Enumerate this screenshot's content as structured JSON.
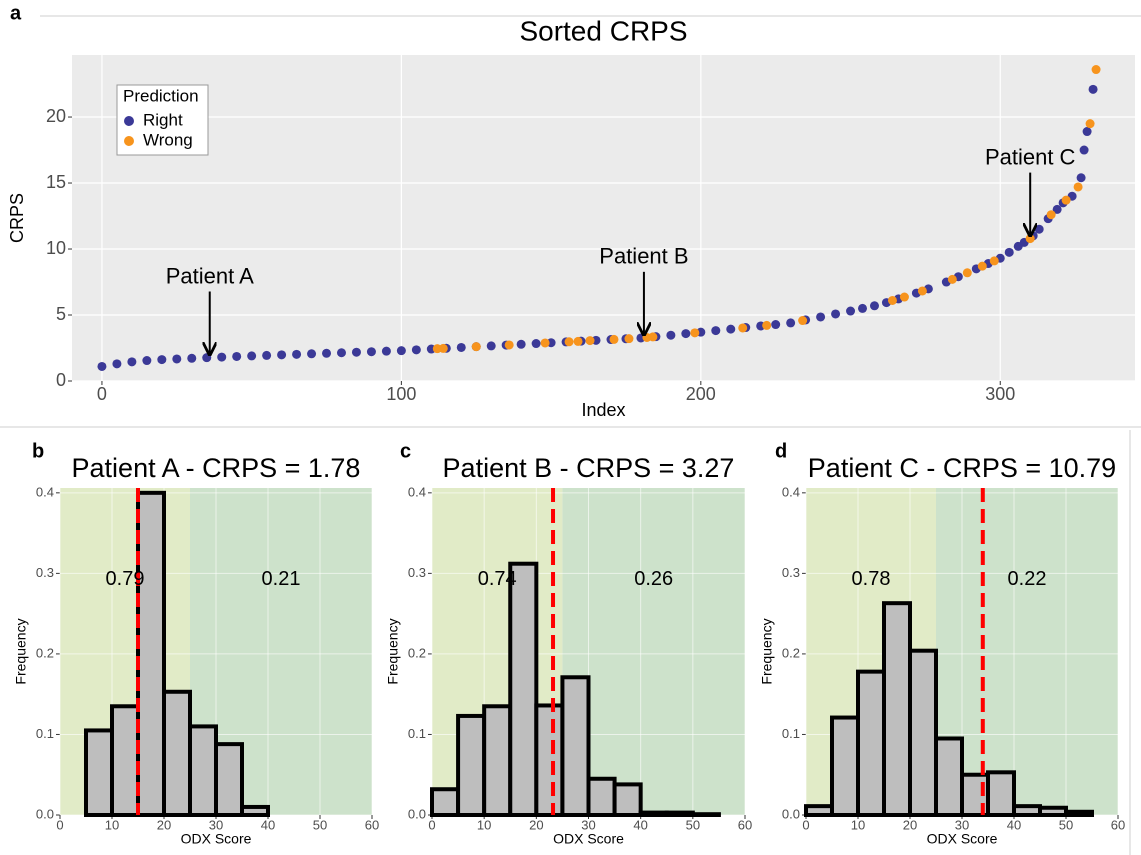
{
  "chart_data": [
    {
      "type": "scatter",
      "panel_label": "a",
      "title": "Sorted CRPS",
      "x_label": "Index",
      "y_label": "CRPS",
      "xlim": [
        -10,
        345
      ],
      "ylim": [
        0,
        24.7
      ],
      "xticks": [
        0,
        100,
        200,
        300
      ],
      "yticks": [
        0,
        5,
        10,
        15,
        20
      ],
      "grid": true,
      "legend": {
        "title": "Prediction",
        "position": "top-left"
      },
      "series": [
        {
          "name": "Right",
          "color": "#3b3997",
          "x": [
            0,
            5,
            10,
            15,
            20,
            25,
            30,
            35,
            40,
            45,
            50,
            55,
            60,
            65,
            70,
            75,
            80,
            85,
            90,
            95,
            100,
            105,
            110,
            115,
            120,
            125,
            130,
            135,
            140,
            145,
            150,
            155,
            160,
            165,
            170,
            175,
            180,
            185,
            190,
            195,
            200,
            205,
            210,
            215,
            220,
            225,
            230,
            235,
            240,
            245,
            250,
            254,
            258,
            262,
            266,
            272,
            276,
            282,
            286,
            292,
            296,
            300,
            303,
            306,
            308,
            311,
            313,
            316,
            319,
            321,
            324,
            327,
            328,
            329,
            331
          ],
          "values": [
            1.1,
            1.3,
            1.45,
            1.55,
            1.62,
            1.67,
            1.72,
            1.77,
            1.81,
            1.86,
            1.9,
            1.94,
            1.98,
            2.02,
            2.06,
            2.1,
            2.14,
            2.18,
            2.22,
            2.26,
            2.3,
            2.36,
            2.42,
            2.48,
            2.54,
            2.6,
            2.66,
            2.72,
            2.78,
            2.84,
            2.9,
            2.96,
            3.02,
            3.08,
            3.14,
            3.2,
            3.26,
            3.36,
            3.47,
            3.59,
            3.7,
            3.82,
            3.93,
            4.05,
            4.17,
            4.28,
            4.4,
            4.63,
            4.85,
            5.08,
            5.3,
            5.5,
            5.7,
            5.94,
            6.22,
            6.66,
            6.98,
            7.5,
            7.9,
            8.5,
            8.9,
            9.3,
            9.75,
            10.2,
            10.5,
            11.0,
            11.5,
            12.3,
            13.0,
            13.5,
            14.0,
            15.4,
            17.5,
            18.9,
            22.1
          ]
        },
        {
          "name": "Wrong",
          "color": "#f7941d",
          "x": [
            112,
            114,
            125,
            136,
            148,
            156,
            159,
            163,
            171,
            176,
            182,
            184,
            198,
            214,
            222,
            234,
            264,
            268,
            274,
            284,
            289,
            294,
            298,
            310,
            317,
            322,
            326,
            330,
            332
          ],
          "values": [
            2.45,
            2.47,
            2.6,
            2.73,
            2.88,
            2.97,
            3.0,
            3.06,
            3.15,
            3.21,
            3.3,
            3.34,
            3.65,
            4.02,
            4.21,
            4.58,
            6.1,
            6.36,
            6.82,
            7.7,
            8.2,
            8.7,
            9.1,
            10.79,
            12.6,
            13.7,
            14.7,
            19.5,
            23.6
          ]
        }
      ],
      "annotations": [
        {
          "text": "Patient A",
          "x": 36,
          "y": 1.78
        },
        {
          "text": "Patient B",
          "x": 181,
          "y": 3.27
        },
        {
          "text": "Patient C",
          "x": 310,
          "y": 10.79
        }
      ]
    },
    {
      "type": "histogram",
      "panel_label": "b",
      "title": "Patient A - CRPS = 1.78",
      "x_label": "ODX Score",
      "y_label": "Frequency",
      "bins": [
        0,
        5,
        10,
        15,
        20,
        25,
        30,
        35,
        40,
        45,
        50,
        55,
        60
      ],
      "values": [
        0,
        0.105,
        0.135,
        0.4,
        0.153,
        0.11,
        0.088,
        0.01,
        0,
        0,
        0,
        0
      ],
      "color": "#bebebe",
      "xlim": [
        0,
        60
      ],
      "ylim": [
        0,
        0.406
      ],
      "xticks": [
        0,
        10,
        20,
        30,
        40,
        50,
        60
      ],
      "yticks": [
        {
          "value": 0,
          "label": "0.0"
        },
        0.1,
        0.2,
        0.3,
        0.4
      ],
      "grid": true,
      "vline": 15,
      "vline_color": "#ff0000",
      "regions": [
        {
          "from": 0,
          "to": 25,
          "color": "#e1ebc7",
          "label": 0.79
        },
        {
          "from": 25,
          "to": 60,
          "color": "#cde2cb",
          "label": 0.21
        }
      ]
    },
    {
      "type": "histogram",
      "panel_label": "c",
      "title": "Patient B - CRPS = 3.27",
      "x_label": "ODX Score",
      "y_label": "Frequency",
      "bins": [
        0,
        5,
        10,
        15,
        20,
        25,
        30,
        35,
        40,
        45,
        50,
        55,
        60
      ],
      "values": [
        0.032,
        0.123,
        0.135,
        0.312,
        0.136,
        0.171,
        0.045,
        0.038,
        0.003,
        0.003,
        0.001,
        0
      ],
      "color": "#bebebe",
      "xlim": [
        0,
        60
      ],
      "ylim": [
        0,
        0.406
      ],
      "xticks": [
        0,
        10,
        20,
        30,
        40,
        50,
        60
      ],
      "yticks": [
        {
          "value": 0,
          "label": "0.0"
        },
        0.1,
        0.2,
        0.3,
        0.4
      ],
      "grid": true,
      "vline": 23.2,
      "vline_color": "#ff0000",
      "regions": [
        {
          "from": 0,
          "to": 25,
          "color": "#e1ebc7",
          "label": 0.74
        },
        {
          "from": 25,
          "to": 60,
          "color": "#cde2cb",
          "label": 0.26
        }
      ]
    },
    {
      "type": "histogram",
      "panel_label": "d",
      "title": "Patient C - CRPS = 10.79",
      "x_label": "ODX Score",
      "y_label": "Frequency",
      "bins": [
        0,
        5,
        10,
        15,
        20,
        25,
        30,
        35,
        40,
        45,
        50,
        55,
        60
      ],
      "values": [
        0.011,
        0.121,
        0.178,
        0.263,
        0.204,
        0.095,
        0.05,
        0.053,
        0.011,
        0.009,
        0.004,
        0
      ],
      "color": "#bebebe",
      "xlim": [
        0,
        60
      ],
      "ylim": [
        0,
        0.406
      ],
      "xticks": [
        0,
        10,
        20,
        30,
        40,
        50,
        60
      ],
      "yticks": [
        {
          "value": 0,
          "label": "0.0"
        },
        0.1,
        0.2,
        0.3,
        0.4
      ],
      "grid": true,
      "vline": 34,
      "vline_color": "#ff0000",
      "regions": [
        {
          "from": 0,
          "to": 25,
          "color": "#e1ebc7",
          "label": 0.78
        },
        {
          "from": 25,
          "to": 60,
          "color": "#cde2cb",
          "label": 0.22
        }
      ]
    }
  ]
}
